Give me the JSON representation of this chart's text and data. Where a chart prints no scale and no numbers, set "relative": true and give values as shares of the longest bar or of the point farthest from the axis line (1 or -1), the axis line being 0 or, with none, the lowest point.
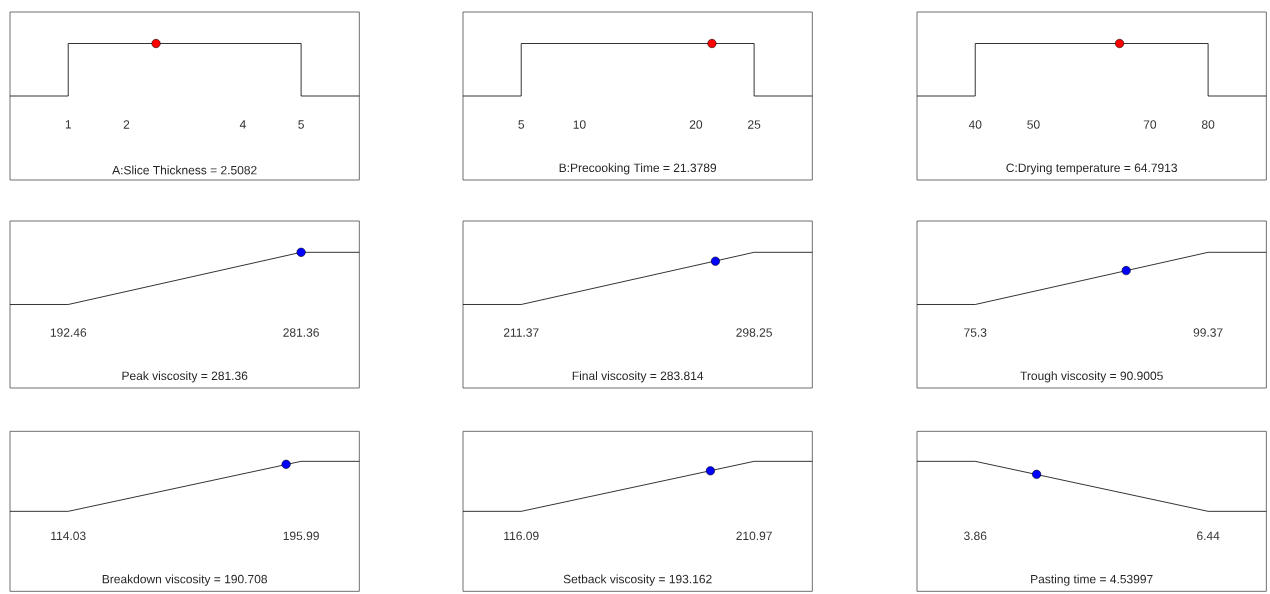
{
  "chart_data": [
    {
      "type": "line",
      "relative": true,
      "xlim": [
        0,
        6
      ],
      "xticks": [
        1,
        2,
        4,
        5
      ],
      "xlabel": "A:Slice Thickness = 2.5082",
      "series": [
        {
          "color": "#000000",
          "x": [
            0,
            1,
            1,
            5,
            5,
            6
          ],
          "values": [
            0,
            0,
            1,
            1,
            0,
            0
          ]
        },
        {
          "type": "scatter",
          "color": "#ff0000",
          "x": [
            2.5082
          ],
          "values": [
            1
          ]
        }
      ]
    },
    {
      "type": "line",
      "relative": true,
      "xlim": [
        0,
        30
      ],
      "xticks": [
        5,
        10,
        20,
        25
      ],
      "xlabel": "B:Precooking Time = 21.3789",
      "series": [
        {
          "color": "#000000",
          "x": [
            0,
            5,
            5,
            25,
            25,
            30
          ],
          "values": [
            0,
            0,
            1,
            1,
            0,
            0
          ]
        },
        {
          "type": "scatter",
          "color": "#ff0000",
          "x": [
            21.3789
          ],
          "values": [
            1
          ]
        }
      ]
    },
    {
      "type": "line",
      "relative": true,
      "xlim": [
        30,
        90
      ],
      "xticks": [
        40,
        50,
        70,
        80
      ],
      "xlabel": "C:Drying temperature = 64.7913",
      "series": [
        {
          "color": "#000000",
          "x": [
            30,
            40,
            40,
            80,
            80,
            90
          ],
          "values": [
            0,
            0,
            1,
            1,
            0,
            0
          ]
        },
        {
          "type": "scatter",
          "color": "#ff0000",
          "x": [
            64.7913
          ],
          "values": [
            1
          ]
        }
      ]
    },
    {
      "type": "line",
      "relative": true,
      "xlim": [
        170.2,
        303.6
      ],
      "xticks": [
        192.46,
        281.36
      ],
      "xlabel": "Peak viscosity = 281.36",
      "series": [
        {
          "color": "#000000",
          "x": [
            170.2,
            192.46,
            281.36,
            303.6
          ],
          "values": [
            0,
            0,
            1,
            1
          ]
        },
        {
          "type": "scatter",
          "color": "#0000ff",
          "x": [
            281.36
          ],
          "values": [
            1
          ]
        }
      ]
    },
    {
      "type": "line",
      "relative": true,
      "xlim": [
        189.65,
        319.97
      ],
      "xticks": [
        211.37,
        298.25
      ],
      "xlabel": "Final viscosity = 283.814",
      "series": [
        {
          "color": "#000000",
          "x": [
            189.65,
            211.37,
            298.25,
            319.97
          ],
          "values": [
            0,
            0,
            1,
            1
          ]
        },
        {
          "type": "scatter",
          "color": "#0000ff",
          "x": [
            283.814
          ],
          "values": [
            0.83
          ]
        }
      ]
    },
    {
      "type": "line",
      "relative": true,
      "xlim": [
        69.28,
        105.39
      ],
      "xticks": [
        75.3,
        99.37
      ],
      "xlabel": "Trough viscosity = 90.9005",
      "series": [
        {
          "color": "#000000",
          "x": [
            69.28,
            75.3,
            99.37,
            105.39
          ],
          "values": [
            0,
            0,
            1,
            1
          ]
        },
        {
          "type": "scatter",
          "color": "#0000ff",
          "x": [
            90.9005
          ],
          "values": [
            0.65
          ]
        }
      ]
    },
    {
      "type": "line",
      "relative": true,
      "xlim": [
        93.54,
        216.48
      ],
      "xticks": [
        114.03,
        195.99
      ],
      "xlabel": "Breakdown viscosity  = 190.708",
      "series": [
        {
          "color": "#000000",
          "x": [
            93.54,
            114.03,
            195.99,
            216.48
          ],
          "values": [
            0,
            0,
            1,
            1
          ]
        },
        {
          "type": "scatter",
          "color": "#0000ff",
          "x": [
            190.708
          ],
          "values": [
            0.94
          ]
        }
      ]
    },
    {
      "type": "line",
      "relative": true,
      "xlim": [
        92.37,
        234.69
      ],
      "xticks": [
        116.09,
        210.97
      ],
      "xlabel": "Setback viscosity  = 193.162",
      "series": [
        {
          "color": "#000000",
          "x": [
            92.37,
            116.09,
            210.97,
            234.69
          ],
          "values": [
            0,
            0,
            1,
            1
          ]
        },
        {
          "type": "scatter",
          "color": "#0000ff",
          "x": [
            193.162
          ],
          "values": [
            0.81
          ]
        }
      ]
    },
    {
      "type": "line",
      "relative": true,
      "xlim": [
        3.215,
        7.085
      ],
      "xticks": [
        3.86,
        6.44
      ],
      "xlabel": "Pasting time = 4.53997",
      "series": [
        {
          "color": "#000000",
          "x": [
            3.215,
            3.86,
            6.44,
            7.085
          ],
          "values": [
            1,
            1,
            0,
            0
          ]
        },
        {
          "type": "scatter",
          "color": "#0000ff",
          "x": [
            4.53997
          ],
          "values": [
            0.74
          ]
        }
      ]
    }
  ]
}
